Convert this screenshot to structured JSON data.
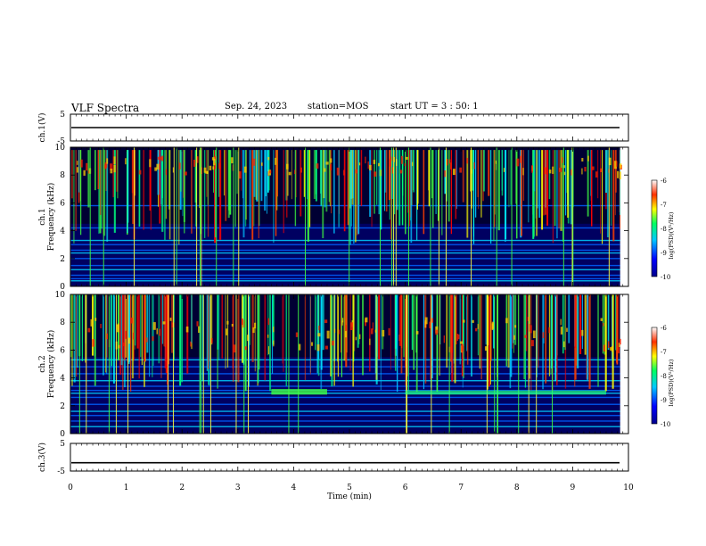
{
  "header": {
    "title": "VLF Spectra",
    "date": "Sep. 24, 2023",
    "station": "station=MOS",
    "start": "start  UT =  3 : 50: 1"
  },
  "chart_data": [
    {
      "type": "line",
      "panel": "ch1-waveform",
      "ylabel": "ch.1(V)",
      "ylim": [
        -5,
        5
      ],
      "ytick_labels": [
        "5",
        "-5"
      ],
      "x": [
        0,
        10
      ],
      "series": [
        {
          "values": [
            0,
            0
          ]
        }
      ]
    },
    {
      "type": "heatmap",
      "panel": "ch1-spectrogram",
      "ylabel": "ch.1\nFrequency (kHz)",
      "ylim": [
        0,
        10
      ],
      "yticks": [
        0,
        2,
        4,
        6,
        8,
        10
      ],
      "xlim": [
        0,
        9.85
      ],
      "colorbar": {
        "label": "log(PSD)(V²/Hz)",
        "ticks": [
          -6,
          -7,
          -8,
          -9,
          -10
        ],
        "range": [
          -10,
          -6
        ]
      }
    },
    {
      "type": "heatmap",
      "panel": "ch2-spectrogram",
      "ylabel": "ch.2\nFrequency (kHz)",
      "ylim": [
        0,
        10
      ],
      "yticks": [
        0,
        2,
        4,
        6,
        8,
        10
      ],
      "xlim": [
        0,
        9.85
      ],
      "colorbar": {
        "label": "log(PSD)(V²/Hz)",
        "ticks": [
          -6,
          -7,
          -8,
          -9,
          -10
        ],
        "range": [
          -10,
          -6
        ]
      }
    },
    {
      "type": "line",
      "panel": "ch3-waveform",
      "ylabel": "ch.3(V)",
      "ylim": [
        -5,
        5
      ],
      "ytick_labels": [
        "5",
        "-5"
      ],
      "x": [
        0,
        10
      ],
      "series": [
        {
          "values": [
            -2,
            -2
          ]
        }
      ]
    }
  ],
  "xaxis": {
    "label": "Time (min)",
    "ticks": [
      0,
      1,
      2,
      3,
      4,
      5,
      6,
      7,
      8,
      9,
      10
    ],
    "xlim": [
      0,
      10
    ]
  }
}
